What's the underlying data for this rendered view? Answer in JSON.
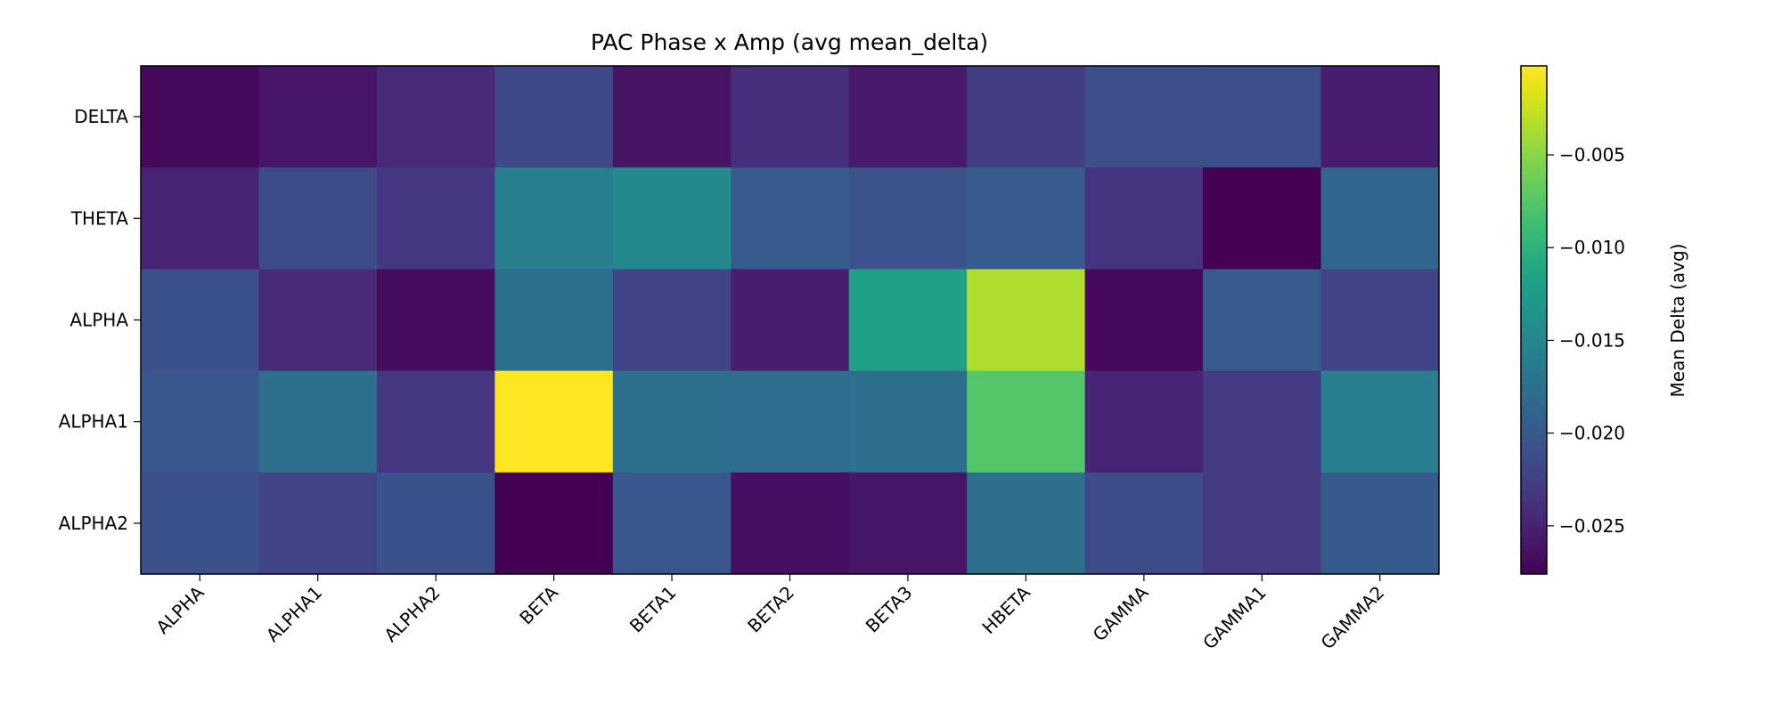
{
  "chart_data": {
    "type": "heatmap",
    "title": "PAC Phase x Amp (avg mean_delta)",
    "xlabel": "",
    "ylabel": "",
    "x_categories": [
      "ALPHA",
      "ALPHA1",
      "ALPHA2",
      "BETA",
      "BETA1",
      "BETA2",
      "BETA3",
      "HBETA",
      "GAMMA",
      "GAMMA1",
      "GAMMA2"
    ],
    "y_categories": [
      "DELTA",
      "THETA",
      "ALPHA",
      "ALPHA1",
      "ALPHA2"
    ],
    "values": [
      [
        -0.0271,
        -0.026,
        -0.0243,
        -0.0216,
        -0.0262,
        -0.024,
        -0.0257,
        -0.0227,
        -0.021,
        -0.021,
        -0.0254
      ],
      [
        -0.0249,
        -0.0213,
        -0.0232,
        -0.0161,
        -0.0147,
        -0.0197,
        -0.0205,
        -0.0197,
        -0.0235,
        -0.0276,
        -0.0188
      ],
      [
        -0.0208,
        -0.0243,
        -0.0268,
        -0.0175,
        -0.0221,
        -0.0254,
        -0.012,
        -0.0035,
        -0.0271,
        -0.0197,
        -0.0221
      ],
      [
        -0.0202,
        -0.0175,
        -0.0232,
        -0.0002,
        -0.0175,
        -0.018,
        -0.0177,
        -0.0076,
        -0.0249,
        -0.0229,
        -0.0161
      ],
      [
        -0.0208,
        -0.0221,
        -0.0208,
        -0.0276,
        -0.0202,
        -0.0265,
        -0.026,
        -0.0177,
        -0.0213,
        -0.0229,
        -0.0199
      ]
    ],
    "colormap": "viridis",
    "colorbar": {
      "label": "Mean Delta (avg)",
      "range": [
        -0.0276,
        -0.0002
      ],
      "ticks": [
        -0.025,
        -0.02,
        -0.015,
        -0.01,
        -0.005
      ],
      "tick_labels": [
        "−0.025",
        "−0.020",
        "−0.015",
        "−0.010",
        "−0.005"
      ]
    },
    "grid": false
  }
}
